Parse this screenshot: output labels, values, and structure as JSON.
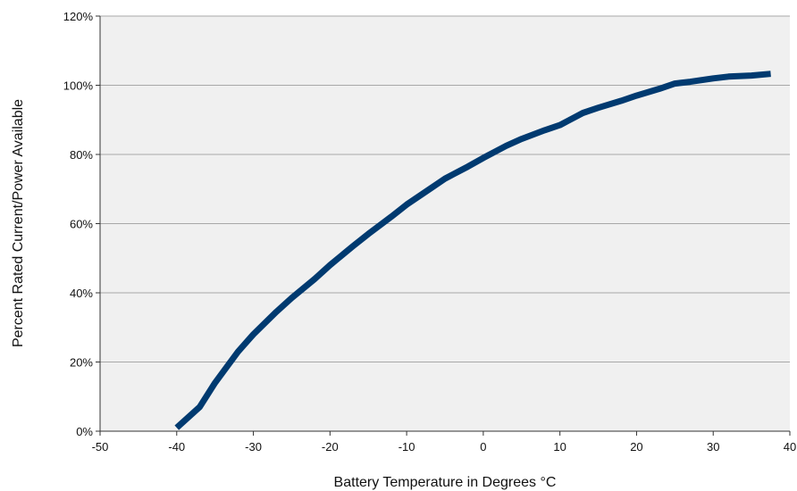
{
  "chart_data": {
    "type": "line",
    "title": "",
    "xlabel": "Battery Temperature in Degrees °C",
    "ylabel": "Percent Rated Current/Power Available",
    "xlim": [
      -50,
      40
    ],
    "ylim": [
      0,
      120
    ],
    "x_ticks": [
      -50,
      -40,
      -30,
      -20,
      -10,
      0,
      10,
      20,
      30,
      40
    ],
    "x_tick_labels": [
      "-50",
      "-40",
      "-30",
      "-20",
      "-10",
      "0",
      "10",
      "20",
      "30",
      "40"
    ],
    "y_ticks": [
      0,
      20,
      40,
      60,
      80,
      100,
      120
    ],
    "y_tick_labels": [
      "0%",
      "20%",
      "40%",
      "60%",
      "80%",
      "100%",
      "120%"
    ],
    "grid": "horizontal",
    "legend": "none",
    "series": [
      {
        "color": "#003a70",
        "x": [
          -40,
          -37,
          -35,
          -32,
          -30,
          -27,
          -25,
          -22,
          -20,
          -17,
          -15,
          -12,
          -10,
          -7,
          -5,
          -2,
          0,
          3,
          5,
          8,
          10,
          13,
          15,
          18,
          20,
          23,
          25,
          27,
          30,
          32,
          35,
          37.5
        ],
        "y": [
          1,
          7,
          14,
          23,
          28,
          34.5,
          38.5,
          44,
          48,
          53.5,
          57,
          62,
          65.5,
          70,
          73,
          76.5,
          79,
          82.5,
          84.5,
          87,
          88.5,
          92,
          93.5,
          95.5,
          97,
          99,
          100.5,
          101,
          102,
          102.5,
          102.8,
          103.3
        ]
      }
    ],
    "colors": {
      "plot_background": "#f0f0f0",
      "gridline": "#a8a8a8",
      "axis": "#333333"
    }
  }
}
